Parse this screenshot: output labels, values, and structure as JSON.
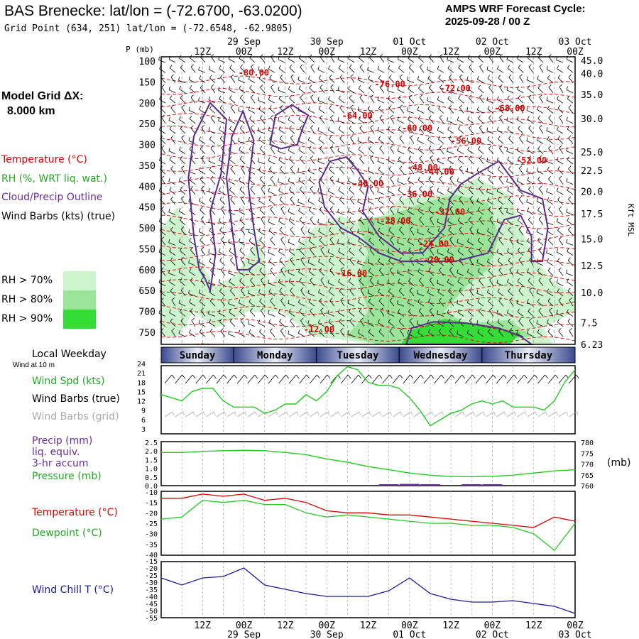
{
  "header": {
    "title": "BAS Brenecke:  lat/lon = (-72.6700, -63.0200)",
    "grid_point": "Grid Point (634, 251) lat/lon = (-72.6548, -62.9805)",
    "cycle_line1": "AMPS WRF Forecast Cycle:",
    "cycle_line2": "2025-09-28 / 00  Z"
  },
  "sidebar": {
    "grid_label": "Model Grid ΔX:",
    "grid_value": "8.000 km",
    "legend_temperature": "Temperature (°C)",
    "legend_rh": "RH (%, WRT liq. wat.)",
    "legend_cloud": "Cloud/Precip Outline",
    "legend_wind": "Wind Barbs (kts) (true)",
    "rh70": "RH > 70%",
    "rh80": "RH > 80%",
    "rh90": "RH > 90%",
    "local_weekday": "Local Weekday",
    "wind_10m": "Wind at 10 m",
    "wind_spd": "Wind Spd (kts)",
    "barbs_true": "Wind Barbs (true)",
    "barbs_grid": "Wind Barbs (grid)",
    "precip": "Precip (mm)",
    "liq_equiv": "liq. equiv.",
    "accum": "3-hr accum",
    "pressure": "Pressure (mb)",
    "temperature": "Temperature (°C)",
    "dewpoint": "Dewpoint (°C)",
    "wind_chill": "Wind Chill T (°C)"
  },
  "colors": {
    "temperature": "#dd0000",
    "rh": "#22aa22",
    "cloud": "#5a2b8c",
    "wind": "#000000",
    "grid_barb": "#aaaaaa",
    "wind_chill": "#1a1aa0",
    "rh70": "#cdf5cd",
    "rh80": "#9ae59a",
    "rh90": "#33dd33",
    "day_band": "#4a5a9c"
  },
  "chart_data": [
    {
      "type": "line",
      "name": "cross-section",
      "title": "Time-height cross section",
      "ylabel": "P (mb)",
      "y2label": "Kft MSL",
      "pressure_ticks": [
        "100",
        "150",
        "200",
        "250",
        "300",
        "350",
        "400",
        "450",
        "500",
        "550",
        "600",
        "650",
        "700",
        "750"
      ],
      "kft_ticks": [
        {
          "p": 98,
          "label": "45.0"
        },
        {
          "p": 130,
          "label": "40.0"
        },
        {
          "p": 180,
          "label": "35.0"
        },
        {
          "p": 238,
          "label": "30.0"
        },
        {
          "p": 318,
          "label": "25.0"
        },
        {
          "p": 362,
          "label": "22.5"
        },
        {
          "p": 412,
          "label": "20.0"
        },
        {
          "p": 466,
          "label": "17.5"
        },
        {
          "p": 526,
          "label": "15.0"
        },
        {
          "p": 590,
          "label": "12.5"
        },
        {
          "p": 655,
          "label": "10.0"
        },
        {
          "p": 727,
          "label": "7.5"
        },
        {
          "p": 785,
          "label": "6.23"
        }
      ],
      "x_top_times": [
        "12Z",
        "00Z",
        "12Z",
        "00Z",
        "12Z",
        "00Z",
        "12Z",
        "00Z",
        "12Z",
        "00Z"
      ],
      "x_top_dates": [
        {
          "i": 1,
          "label": "29 Sep"
        },
        {
          "i": 3,
          "label": "30 Sep"
        },
        {
          "i": 5,
          "label": "01 Oct"
        },
        {
          "i": 7,
          "label": "02 Oct"
        },
        {
          "i": 9,
          "label": "03 Oct"
        }
      ],
      "temp_labels": [
        {
          "h": 17,
          "p": 135,
          "label": "-80.00"
        },
        {
          "h": 42,
          "p": 162,
          "label": "-76.00"
        },
        {
          "h": 54,
          "p": 172,
          "label": "-72.00"
        },
        {
          "h": 64,
          "p": 220,
          "label": "-68.00"
        },
        {
          "h": 36,
          "p": 238,
          "label": "-64.00"
        },
        {
          "h": 47,
          "p": 268,
          "label": "-60.00"
        },
        {
          "h": 56,
          "p": 298,
          "label": "-56.00"
        },
        {
          "h": 68,
          "p": 345,
          "label": "-52.00"
        },
        {
          "h": 48,
          "p": 362,
          "label": "-48.00"
        },
        {
          "h": 51,
          "p": 372,
          "label": "-44.00"
        },
        {
          "h": 38,
          "p": 400,
          "label": "-40.00"
        },
        {
          "h": 47,
          "p": 426,
          "label": "-36.00"
        },
        {
          "h": 53,
          "p": 468,
          "label": "-32.00"
        },
        {
          "h": 43,
          "p": 490,
          "label": "-28.00"
        },
        {
          "h": 50,
          "p": 545,
          "label": "-24.00"
        },
        {
          "h": 51,
          "p": 583,
          "label": "-20.00"
        },
        {
          "h": 35,
          "p": 616,
          "label": "-16.00"
        },
        {
          "h": 29,
          "p": 750,
          "label": "-12.00"
        }
      ],
      "cloud_outlines": [
        [
          [
            7,
            600
          ],
          [
            6,
            520
          ],
          [
            5,
            380
          ],
          [
            6,
            280
          ],
          [
            9,
            200
          ],
          [
            12,
            240
          ],
          [
            11,
            370
          ],
          [
            9,
            460
          ],
          [
            10,
            560
          ],
          [
            9,
            650
          ],
          [
            8,
            620
          ]
        ],
        [
          [
            14,
            600
          ],
          [
            13,
            500
          ],
          [
            12,
            380
          ],
          [
            13,
            280
          ],
          [
            15,
            220
          ],
          [
            17,
            290
          ],
          [
            16,
            400
          ],
          [
            17,
            500
          ],
          [
            18,
            580
          ],
          [
            16,
            600
          ]
        ],
        [
          [
            20,
            300
          ],
          [
            21,
            230
          ],
          [
            24,
            205
          ],
          [
            27,
            230
          ],
          [
            26,
            260
          ],
          [
            25,
            300
          ],
          [
            22,
            310
          ]
        ],
        [
          [
            30,
            450
          ],
          [
            29,
            390
          ],
          [
            31,
            340
          ],
          [
            34,
            330
          ],
          [
            36,
            360
          ],
          [
            38,
            400
          ],
          [
            37,
            460
          ],
          [
            40,
            520
          ],
          [
            44,
            560
          ],
          [
            48,
            560
          ],
          [
            52,
            500
          ],
          [
            53,
            430
          ],
          [
            55,
            395
          ],
          [
            58,
            370
          ],
          [
            62,
            340
          ],
          [
            66,
            410
          ],
          [
            70,
            430
          ],
          [
            71,
            500
          ],
          [
            70,
            580
          ],
          [
            68,
            580
          ],
          [
            68,
            520
          ],
          [
            66,
            470
          ],
          [
            63,
            480
          ],
          [
            60,
            560
          ],
          [
            54,
            580
          ],
          [
            48,
            580
          ],
          [
            44,
            580
          ],
          [
            40,
            560
          ],
          [
            36,
            520
          ],
          [
            33,
            500
          ]
        ],
        [
          [
            45,
            780
          ],
          [
            46,
            740
          ],
          [
            50,
            725
          ],
          [
            56,
            728
          ],
          [
            62,
            740
          ],
          [
            66,
            760
          ],
          [
            68,
            780
          ],
          [
            56,
            790
          ],
          [
            46,
            790
          ]
        ]
      ],
      "rh_regions": [
        {
          "level": 70,
          "points": [
            [
              0,
              500
            ],
            [
              3,
              450
            ],
            [
              6,
              560
            ],
            [
              10,
              640
            ],
            [
              14,
              610
            ],
            [
              18,
              520
            ],
            [
              20,
              640
            ],
            [
              24,
              560
            ],
            [
              28,
              500
            ],
            [
              33,
              470
            ],
            [
              38,
              500
            ],
            [
              44,
              430
            ],
            [
              52,
              420
            ],
            [
              58,
              380
            ],
            [
              64,
              420
            ],
            [
              66,
              500
            ],
            [
              68,
              560
            ],
            [
              72,
              630
            ],
            [
              76,
              660
            ],
            [
              76,
              700
            ],
            [
              70,
              740
            ],
            [
              72,
              790
            ],
            [
              40,
              790
            ],
            [
              28,
              760
            ],
            [
              22,
              700
            ],
            [
              16,
              700
            ],
            [
              10,
              740
            ],
            [
              6,
              700
            ],
            [
              3,
              760
            ],
            [
              0,
              760
            ]
          ]
        },
        {
          "level": 80,
          "points": [
            [
              36,
              480
            ],
            [
              42,
              470
            ],
            [
              48,
              440
            ],
            [
              54,
              420
            ],
            [
              60,
              440
            ],
            [
              62,
              520
            ],
            [
              60,
              600
            ],
            [
              56,
              640
            ],
            [
              52,
              700
            ],
            [
              56,
              730
            ],
            [
              64,
              720
            ],
            [
              68,
              760
            ],
            [
              58,
              790
            ],
            [
              40,
              790
            ],
            [
              34,
              760
            ],
            [
              38,
              700
            ],
            [
              36,
              620
            ],
            [
              38,
              560
            ]
          ]
        },
        {
          "level": 90,
          "points": [
            [
              44,
              790
            ],
            [
              46,
              745
            ],
            [
              52,
              718
            ],
            [
              58,
              730
            ],
            [
              66,
              752
            ],
            [
              64,
              790
            ]
          ]
        }
      ]
    },
    {
      "type": "line",
      "name": "wind-speed",
      "title": "Wind Spd (kts)",
      "ylabel": "kts",
      "y_ticks": [
        3,
        6,
        9,
        12,
        15,
        18,
        21,
        24
      ],
      "ylim": [
        3,
        24
      ],
      "x": [
        0,
        3,
        6,
        9,
        12,
        15,
        18,
        21,
        24,
        27,
        30,
        33,
        36,
        39,
        42,
        45,
        48,
        51,
        54,
        57,
        60,
        63,
        66,
        69,
        72,
        75,
        78,
        81,
        84,
        87,
        90,
        93,
        96,
        99,
        102,
        105,
        108,
        111,
        114,
        117,
        120
      ],
      "values": [
        14,
        13,
        12,
        15,
        16,
        16,
        12,
        10,
        10,
        10,
        8,
        9,
        11,
        11,
        14,
        12,
        15,
        20,
        23,
        22,
        18,
        17,
        17,
        16,
        13,
        9,
        4,
        6,
        8,
        9,
        11,
        12,
        11,
        12,
        10,
        10,
        10,
        9,
        12,
        18,
        22
      ]
    },
    {
      "type": "line",
      "name": "pressure-precip",
      "title": "Pressure (mb)",
      "left_ticks": [
        "0.0",
        "0.5",
        "1.0",
        "1.5",
        "2.0",
        "2.5"
      ],
      "right_ticks": [
        "760",
        "765",
        "770",
        "775",
        "780"
      ],
      "ylim": [
        760,
        780
      ],
      "x": [
        0,
        6,
        12,
        18,
        24,
        30,
        36,
        42,
        48,
        54,
        60,
        66,
        72,
        78,
        84,
        90,
        96,
        102,
        108,
        114,
        120
      ],
      "values": [
        775,
        775,
        775.5,
        775.8,
        776,
        775.8,
        775,
        774,
        772,
        770.5,
        768.5,
        767,
        765.5,
        764.5,
        763.9,
        763.8,
        764,
        764.5,
        765.5,
        766.5,
        767
      ],
      "precip": [
        0,
        0,
        0,
        0,
        0,
        0,
        0,
        0,
        0,
        0,
        0,
        0.05,
        0.1,
        0.05,
        0,
        0.02,
        0.05,
        0,
        0,
        0,
        0
      ]
    },
    {
      "type": "line",
      "name": "temperature-dewpoint",
      "y_ticks": [
        -40,
        -35,
        -30,
        -25,
        -20,
        -15,
        -10
      ],
      "ylim": [
        -40,
        -10
      ],
      "x": [
        0,
        6,
        12,
        18,
        24,
        30,
        36,
        42,
        48,
        54,
        60,
        66,
        72,
        78,
        84,
        90,
        96,
        102,
        108,
        114,
        120
      ],
      "series": [
        {
          "name": "Temperature (°C)",
          "values": [
            -13,
            -13,
            -11,
            -12,
            -11,
            -14,
            -13,
            -15,
            -19,
            -20,
            -20,
            -21,
            -21,
            -22,
            -23,
            -24,
            -25,
            -26,
            -27,
            -22,
            -24
          ]
        },
        {
          "name": "Dewpoint (°C)",
          "values": [
            -23,
            -22,
            -14,
            -15,
            -14,
            -16,
            -16,
            -20,
            -22,
            -21,
            -22,
            -23,
            -24,
            -25,
            -25,
            -26,
            -26,
            -27,
            -30,
            -38,
            -25
          ]
        }
      ]
    },
    {
      "type": "line",
      "name": "wind-chill",
      "title": "Wind Chill T (°C)",
      "y_ticks": [
        -55,
        -50,
        -45,
        -40,
        -35,
        -30,
        -25,
        -20,
        -15
      ],
      "ylim": [
        -55,
        -15
      ],
      "x": [
        0,
        6,
        12,
        18,
        24,
        30,
        36,
        42,
        48,
        54,
        60,
        66,
        72,
        78,
        84,
        90,
        96,
        102,
        108,
        114,
        120
      ],
      "values": [
        -27,
        -32,
        -27,
        -26,
        -20,
        -32,
        -35,
        -38,
        -40,
        -40,
        -40,
        -36,
        -27,
        -38,
        -42,
        -44,
        -44,
        -43,
        -45,
        -47,
        -52
      ]
    }
  ],
  "weekdays": [
    "Sunday",
    "Monday",
    "Tuesday",
    "Wednesday",
    "Thursday"
  ],
  "bottom_axis": {
    "times": [
      "12Z",
      "00Z",
      "12Z",
      "00Z",
      "12Z",
      "00Z",
      "12Z",
      "00Z",
      "12Z",
      "00Z"
    ],
    "dates": [
      {
        "i": 1,
        "label": "29 Sep"
      },
      {
        "i": 3,
        "label": "30 Sep"
      },
      {
        "i": 5,
        "label": "01 Oct"
      },
      {
        "i": 7,
        "label": "02 Oct"
      },
      {
        "i": 9,
        "label": "03 Oct"
      }
    ]
  },
  "units_mb": "(mb)",
  "p_mb": "P (mb)"
}
